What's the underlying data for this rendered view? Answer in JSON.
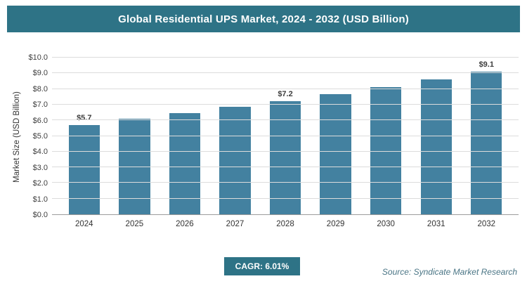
{
  "header": {
    "title": "Global Residential UPS Market, 2024 - 2032 (USD Billion)"
  },
  "chart_data": {
    "type": "bar",
    "title": "Global Residential UPS Market, 2024 - 2032 (USD Billion)",
    "categories": [
      "2024",
      "2025",
      "2026",
      "2027",
      "2028",
      "2029",
      "2030",
      "2031",
      "2032"
    ],
    "values": [
      5.7,
      6.1,
      6.45,
      6.85,
      7.2,
      7.65,
      8.1,
      8.6,
      9.1
    ],
    "data_labels": [
      "$5.7",
      null,
      null,
      null,
      "$7.2",
      null,
      null,
      null,
      "$9.1"
    ],
    "xlabel": "",
    "ylabel": "Market Size (USD Billion)",
    "ylim": [
      0,
      10
    ],
    "ytick_step": 1,
    "ytick_labels": [
      "$0.0",
      "$1.0",
      "$2.0",
      "$3.0",
      "$4.0",
      "$5.0",
      "$6.0",
      "$7.0",
      "$8.0",
      "$9.0",
      "$10.0"
    ],
    "grid": true,
    "legend": false,
    "bar_color": "#4381A0"
  },
  "footer": {
    "cagr_label": "CAGR: 6.01%",
    "source": "Source: Syndicate Market Research"
  }
}
